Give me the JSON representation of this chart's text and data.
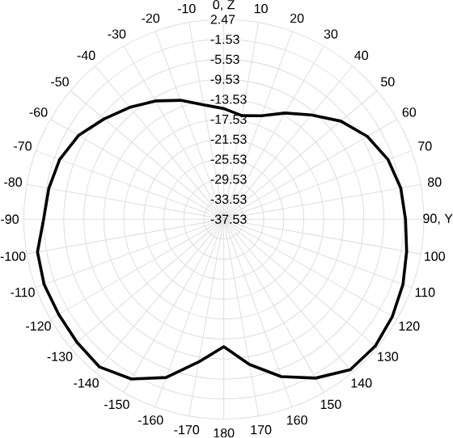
{
  "chart_data": {
    "type": "radar",
    "categories": [
      "0, Z",
      "10",
      "20",
      "30",
      "40",
      "50",
      "60",
      "70",
      "80",
      "90, Y",
      "100",
      "110",
      "120",
      "130",
      "140",
      "150",
      "160",
      "170",
      "180",
      "-170",
      "-160",
      "-150",
      "-140",
      "-130",
      "-120",
      "-110",
      "-100",
      "-90",
      "-80",
      "-70",
      "-60",
      "-50",
      "-40",
      "-30",
      "-20",
      "-10"
    ],
    "series": [
      {
        "color": "#000000",
        "values": [
          -15.4,
          -16.5,
          -15.5,
          -13.0,
          -10.3,
          -7.0,
          -4.4,
          -2.6,
          -1.6,
          -1.2,
          -0.4,
          0.6,
          1.4,
          2.0,
          1.8,
          -0.8,
          -4.0,
          -8.0,
          -12.0,
          -8.5,
          -3.8,
          -0.6,
          1.1,
          0.8,
          0.6,
          0.7,
          0.3,
          -1.5,
          -2.0,
          -2.6,
          -4.0,
          -6.3,
          -8.3,
          -10.2,
          -12.2,
          -14.3
        ]
      }
    ],
    "ylim": [
      -37.53,
      2.47
    ],
    "yticks": [
      2.47,
      -1.53,
      -5.53,
      -9.53,
      -13.53,
      -17.53,
      -21.53,
      -25.53,
      -29.53,
      -33.53,
      -37.53
    ],
    "grid": true
  }
}
